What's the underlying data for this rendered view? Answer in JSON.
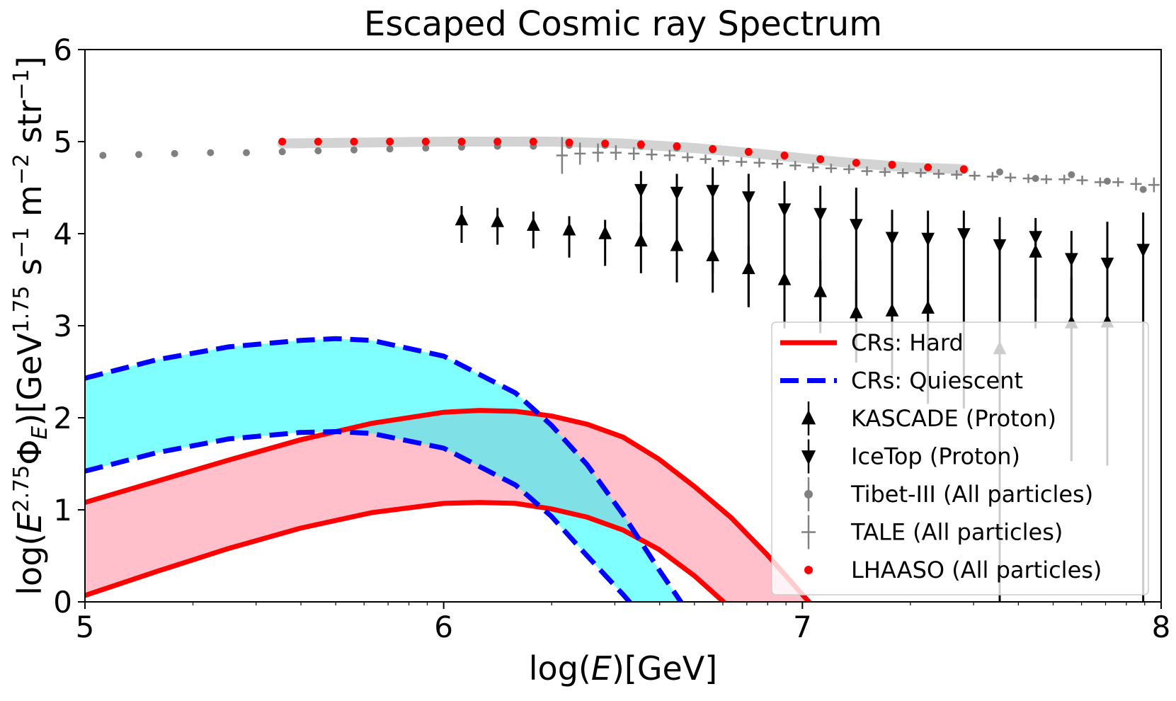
{
  "chart_data": {
    "type": "line",
    "title": "Escaped Cosmic ray Spectrum",
    "xlabel": "log(E)[GeV]",
    "ylabel": "log(E^2.75 Φ_E)[GeV^1.75 s^-1 m^-2 str^-1]",
    "xlim": [
      5,
      8
    ],
    "ylim": [
      0,
      6
    ],
    "xticks": [
      "5",
      "6",
      "7",
      "8"
    ],
    "yticks": [
      "0",
      "1",
      "2",
      "3",
      "4",
      "5",
      "6"
    ],
    "grid": false,
    "legend_position": "bottom-right",
    "legend": [
      {
        "label": "CRs: Hard",
        "marker": "solid-line",
        "color": "#ff0000"
      },
      {
        "label": "CRs: Quiescent",
        "marker": "dashed-line",
        "color": "#0000ff"
      },
      {
        "label": "KASCADE (Proton)",
        "marker": "triangle-up",
        "color": "#000000"
      },
      {
        "label": "IceTop (Proton)",
        "marker": "triangle-down",
        "color": "#000000"
      },
      {
        "label": "Tibet-III (All particles)",
        "marker": "dot-errorbar",
        "color": "#808080"
      },
      {
        "label": "TALE (All particles)",
        "marker": "cross",
        "color": "#808080"
      },
      {
        "label": "LHAASO (All particles)",
        "marker": "dot",
        "color": "#ff0000"
      }
    ],
    "bands": [
      {
        "series": "CRs: Hard",
        "fill": "#ffc0cb",
        "line_color": "#ff0000",
        "upper": {
          "x": [
            5.0,
            5.2,
            5.4,
            5.6,
            5.8,
            6.0,
            6.1,
            6.2,
            6.3,
            6.4,
            6.5,
            6.6,
            6.7,
            6.8,
            6.9,
            7.0,
            7.2
          ],
          "y": [
            1.08,
            1.31,
            1.54,
            1.76,
            1.94,
            2.06,
            2.08,
            2.07,
            2.02,
            1.93,
            1.79,
            1.55,
            1.25,
            0.92,
            0.52,
            0.08,
            -0.8
          ]
        },
        "lower": {
          "x": [
            5.0,
            5.2,
            5.4,
            5.6,
            5.8,
            6.0,
            6.1,
            6.2,
            6.3,
            6.4,
            6.5,
            6.6,
            6.7,
            6.78,
            6.9
          ],
          "y": [
            0.07,
            0.33,
            0.58,
            0.8,
            0.97,
            1.07,
            1.08,
            1.07,
            1.01,
            0.92,
            0.78,
            0.57,
            0.28,
            0.0,
            -0.5
          ]
        }
      },
      {
        "series": "CRs: Quiescent",
        "fill": "#00ffff",
        "fill_opacity": 0.5,
        "line_color": "#0000ff",
        "upper": {
          "x": [
            5.0,
            5.2,
            5.4,
            5.6,
            5.7,
            5.8,
            6.0,
            6.2,
            6.3,
            6.4,
            6.5,
            6.6,
            6.67,
            6.75
          ],
          "y": [
            2.43,
            2.63,
            2.77,
            2.84,
            2.86,
            2.84,
            2.67,
            2.27,
            1.92,
            1.49,
            0.95,
            0.35,
            -0.05,
            -0.6
          ]
        },
        "lower": {
          "x": [
            5.0,
            5.2,
            5.4,
            5.6,
            5.7,
            5.8,
            6.0,
            6.2,
            6.3,
            6.4,
            6.5,
            6.54,
            6.6
          ],
          "y": [
            1.42,
            1.62,
            1.77,
            1.84,
            1.85,
            1.83,
            1.67,
            1.27,
            0.93,
            0.5,
            0.08,
            -0.1,
            -0.5
          ]
        }
      }
    ],
    "lhaaso_band": {
      "color": "#d3d3d3",
      "x": [
        5.55,
        6.0,
        6.3,
        6.5,
        6.7,
        6.9,
        7.1,
        7.3,
        7.45
      ],
      "y": [
        4.98,
        5.0,
        5.0,
        4.98,
        4.93,
        4.86,
        4.78,
        4.72,
        4.7
      ]
    },
    "series": [
      {
        "name": "KASCADE (Proton)",
        "marker": "triangle-up",
        "color": "#000000",
        "x": [
          6.05,
          6.15,
          6.25,
          6.35,
          6.45,
          6.55,
          6.65,
          6.75,
          6.85,
          6.95,
          7.05,
          7.15,
          7.25,
          7.35,
          7.55,
          7.65,
          7.75,
          7.85
        ],
        "y": [
          4.15,
          4.13,
          4.09,
          4.04,
          4.0,
          3.92,
          3.87,
          3.76,
          3.62,
          3.5,
          3.37,
          3.14,
          3.16,
          3.19,
          2.75,
          3.8,
          3.03,
          3.04
        ],
        "err_low": [
          0.25,
          0.25,
          0.25,
          0.3,
          0.35,
          0.35,
          0.4,
          0.4,
          0.4,
          0.35,
          0.35,
          0.5,
          0.5,
          0.5,
          3.0,
          0.5,
          1.5,
          1.5
        ],
        "err_high": [
          0.15,
          0.15,
          0.15,
          0.15,
          0.15,
          0.2,
          0.2,
          0.2,
          0.25,
          0.3,
          0.35,
          0.35,
          0.35,
          0.3,
          0.4,
          0.25,
          0.5,
          0.5
        ]
      },
      {
        "name": "IceTop (Proton)",
        "marker": "triangle-down",
        "color": "#000000",
        "x": [
          6.55,
          6.65,
          6.75,
          6.85,
          6.95,
          7.05,
          7.15,
          7.25,
          7.35,
          7.45,
          7.55,
          7.65,
          7.75,
          7.85,
          7.95
        ],
        "y": [
          4.48,
          4.45,
          4.47,
          4.4,
          4.27,
          4.22,
          4.1,
          3.96,
          3.95,
          4.0,
          3.88,
          3.97,
          3.73,
          3.68,
          3.83
        ],
        "err_low": [
          0.6,
          0.6,
          0.9,
          1.2,
          1.3,
          1.3,
          1.5,
          1.5,
          1.8,
          1.9,
          3.9,
          1.0,
          2.2,
          2.2,
          3.9
        ],
        "err_high": [
          0.2,
          0.2,
          0.25,
          0.25,
          0.3,
          0.3,
          0.4,
          0.3,
          0.3,
          0.25,
          0.3,
          0.2,
          0.3,
          0.45,
          0.4
        ]
      },
      {
        "name": "Tibet-III (All particles)",
        "marker": "dot-errorbar",
        "color": "#808080",
        "x": [
          5.05,
          5.15,
          5.25,
          5.35,
          5.45,
          5.55,
          5.65,
          5.75,
          5.85,
          5.95,
          6.05,
          6.15,
          6.25,
          6.35,
          6.45,
          6.55,
          6.65,
          6.75,
          6.85,
          6.95,
          7.05,
          7.15,
          7.25,
          7.35,
          7.45,
          7.55,
          7.65,
          7.75,
          7.85,
          7.95
        ],
        "y": [
          4.85,
          4.86,
          4.87,
          4.88,
          4.88,
          4.89,
          4.9,
          4.91,
          4.92,
          4.93,
          4.94,
          4.95,
          4.95,
          4.96,
          4.96,
          4.95,
          4.93,
          4.91,
          4.88,
          4.84,
          4.8,
          4.77,
          4.74,
          4.72,
          4.69,
          4.67,
          4.6,
          4.64,
          4.57,
          4.48
        ]
      },
      {
        "name": "TALE (All particles)",
        "marker": "cross",
        "color": "#808080",
        "x": [
          6.33,
          6.38,
          6.43,
          6.48,
          6.53,
          6.58,
          6.63,
          6.68,
          6.73,
          6.78,
          6.83,
          6.88,
          6.93,
          6.98,
          7.03,
          7.08,
          7.13,
          7.18,
          7.23,
          7.28,
          7.33,
          7.38,
          7.43,
          7.48,
          7.53,
          7.58,
          7.63,
          7.68,
          7.73,
          7.78,
          7.83,
          7.88,
          7.93,
          7.98
        ],
        "y": [
          4.85,
          4.87,
          4.88,
          4.88,
          4.87,
          4.86,
          4.85,
          4.83,
          4.81,
          4.79,
          4.78,
          4.77,
          4.76,
          4.74,
          4.72,
          4.71,
          4.7,
          4.68,
          4.67,
          4.66,
          4.66,
          4.65,
          4.64,
          4.63,
          4.62,
          4.61,
          4.6,
          4.59,
          4.59,
          4.58,
          4.56,
          4.56,
          4.54,
          4.53
        ],
        "err": [
          0.2,
          0.12,
          0.1,
          0.08,
          0.07,
          0.06,
          0.06,
          0.05,
          0.05,
          0.05,
          0.05,
          0.05,
          0.05,
          0.05,
          0.05,
          0.05,
          0.05,
          0.05,
          0.05,
          0.05,
          0.05,
          0.05,
          0.05,
          0.05,
          0.05,
          0.05,
          0.05,
          0.05,
          0.05,
          0.05,
          0.05,
          0.05,
          0.07,
          0.08
        ]
      },
      {
        "name": "LHAASO (All particles)",
        "marker": "dot",
        "color": "#ff0000",
        "x": [
          5.55,
          5.65,
          5.75,
          5.85,
          5.95,
          6.05,
          6.15,
          6.25,
          6.35,
          6.45,
          6.55,
          6.65,
          6.75,
          6.85,
          6.95,
          7.05,
          7.15,
          7.25,
          7.35,
          7.45
        ],
        "y": [
          5.0,
          5.0,
          5.0,
          5.0,
          5.0,
          5.0,
          5.0,
          5.0,
          4.99,
          4.98,
          4.97,
          4.95,
          4.92,
          4.89,
          4.85,
          4.81,
          4.77,
          4.75,
          4.72,
          4.7
        ]
      }
    ]
  }
}
